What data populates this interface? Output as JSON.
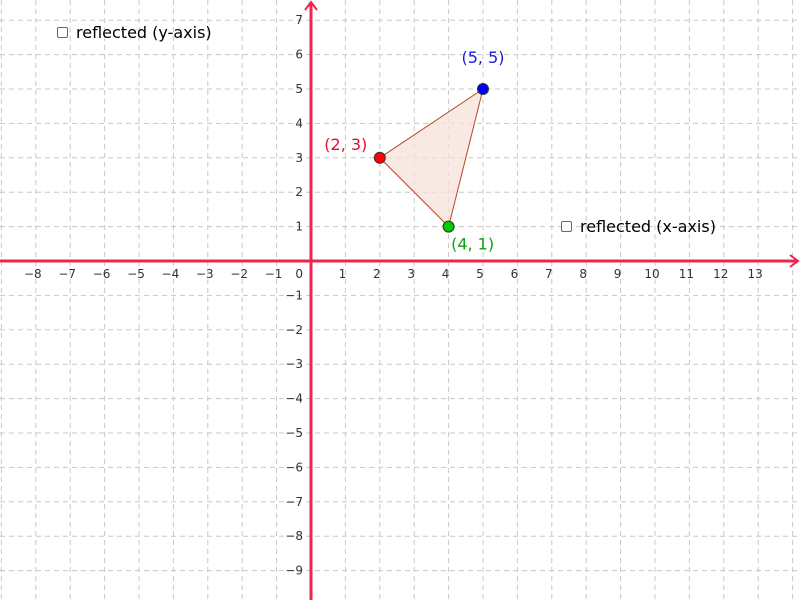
{
  "checkboxes": {
    "reflect_y": {
      "label": "reflected (y-axis)",
      "checked": false
    },
    "reflect_x": {
      "label": "reflected (x-axis)",
      "checked": false
    }
  },
  "axes": {
    "x_range": [
      -9,
      14
    ],
    "y_range": [
      -10,
      8
    ],
    "x_ticks": [
      "−8",
      "−7",
      "−6",
      "−5",
      "−4",
      "−3",
      "−2",
      "−1",
      "1",
      "2",
      "3",
      "4",
      "5",
      "6",
      "7",
      "8",
      "9",
      "10",
      "11",
      "12",
      "13"
    ],
    "y_ticks": [
      "7",
      "6",
      "5",
      "4",
      "3",
      "2",
      "1",
      "−1",
      "−2",
      "−3",
      "−4",
      "−5",
      "−6",
      "−7",
      "−8",
      "−9"
    ],
    "origin_label": "0",
    "axis_color": "#f0244f",
    "grid": true
  },
  "triangle": {
    "fill_color": "#f5e1d8",
    "edge_color": "#b5482a"
  },
  "points": [
    {
      "x": 2,
      "y": 3,
      "label": "(2, 3)",
      "color": "#ff0000",
      "label_color": "#e0102a"
    },
    {
      "x": 5,
      "y": 5,
      "label": "(5, 5)",
      "color": "#0000ff",
      "label_color": "#1a1ad6"
    },
    {
      "x": 4,
      "y": 1,
      "label": "(4, 1)",
      "color": "#00cc00",
      "label_color": "#10a010"
    }
  ]
}
